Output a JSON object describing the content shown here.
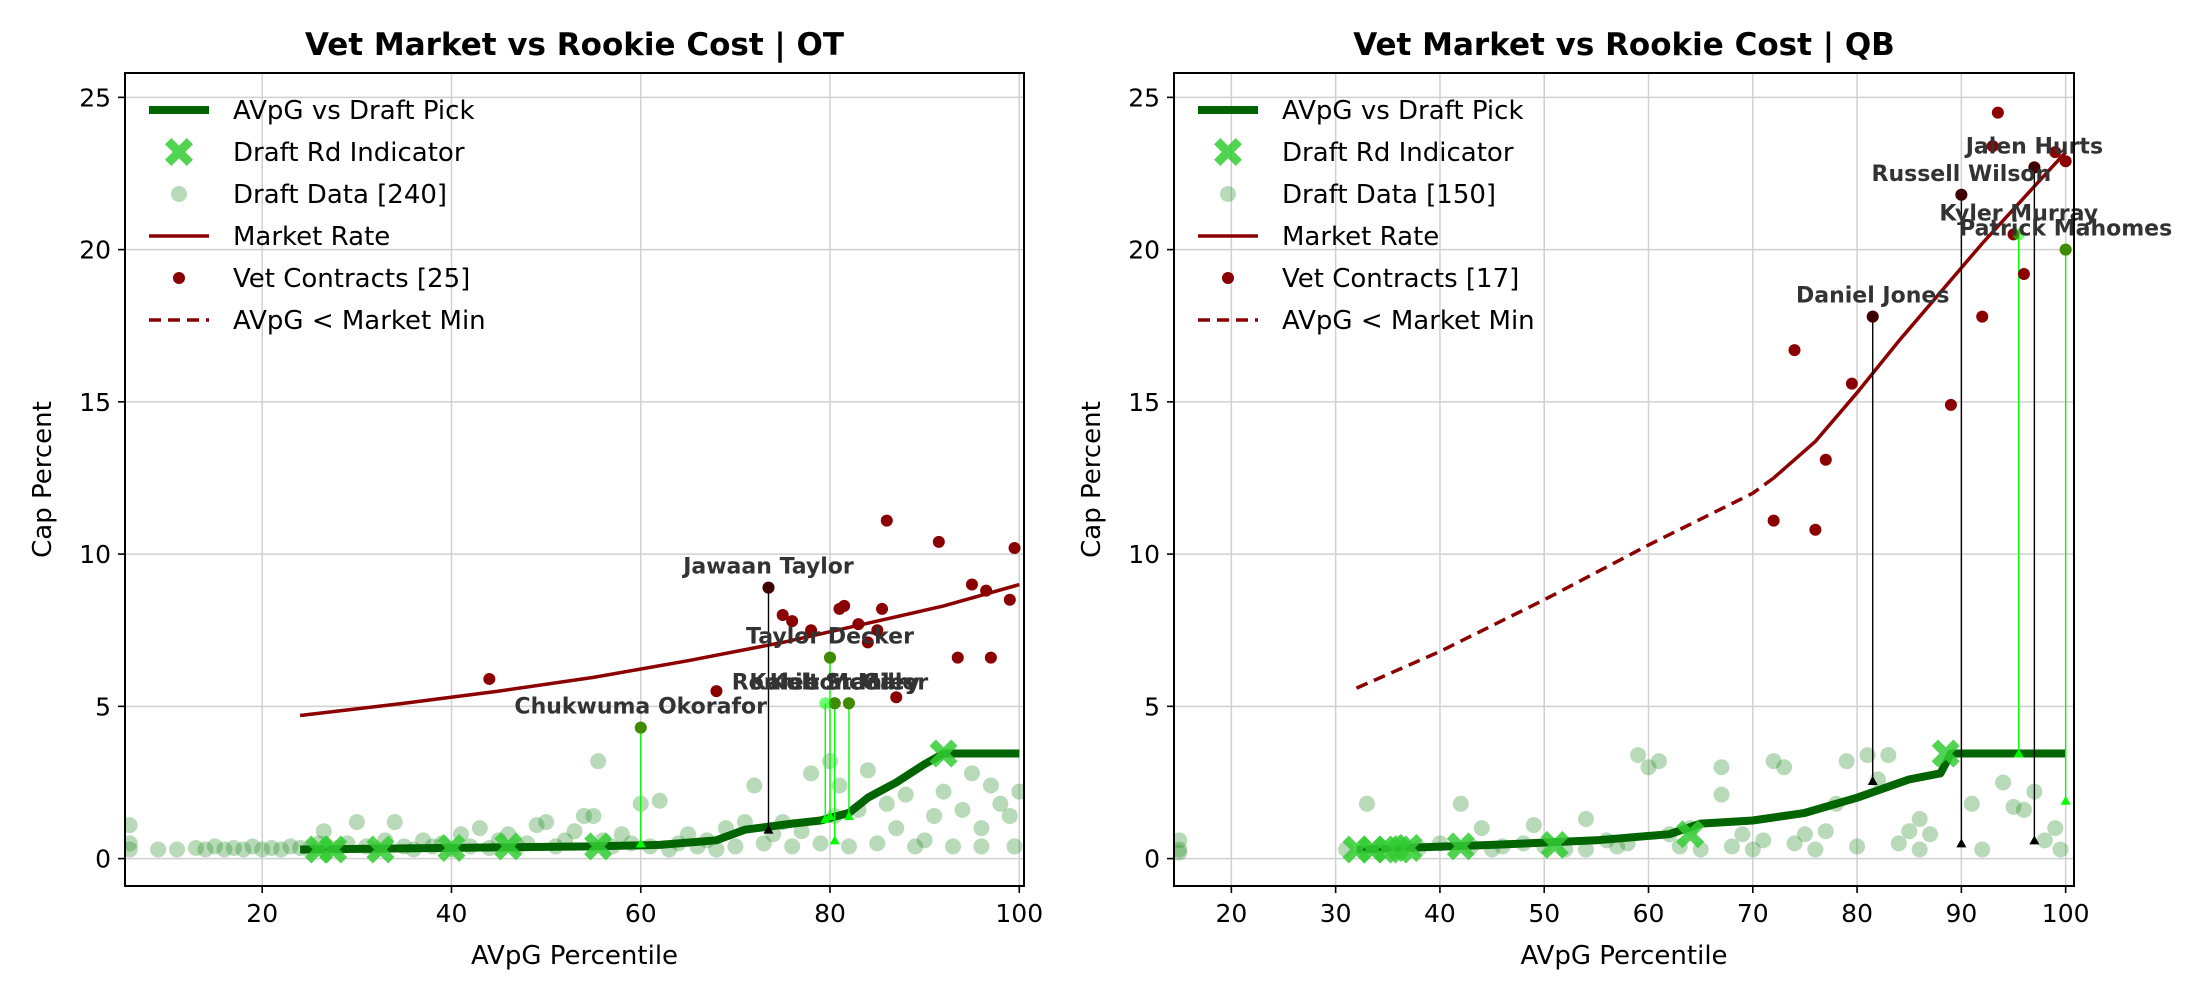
{
  "chart_data": [
    {
      "type": "scatter",
      "title": "Vet Market vs Rookie Cost | OT",
      "xlabel": "AVpG Percentile",
      "ylabel": "Cap Percent",
      "xlim": [
        5.5,
        100.5
      ],
      "ylim": [
        -0.9,
        25.8
      ],
      "xticks": [
        20,
        40,
        60,
        80,
        100
      ],
      "yticks": [
        0,
        5,
        10,
        15,
        20,
        25
      ],
      "grid": true,
      "legend_position": "upper-left",
      "legend": [
        "AVpG vs Draft Pick",
        "Draft Rd Indicator",
        "Draft Data [240]",
        "Market Rate",
        "Vet Contracts [25]",
        "AVpG < Market Min"
      ],
      "colors": {
        "avpg_line": "#006400",
        "draft_marker": "#32cd32",
        "draft_data": "#228b22",
        "market": "#8b0000",
        "highlight": "#00ff00",
        "label": "#333333"
      },
      "avpg_curve": [
        [
          24,
          0.3
        ],
        [
          40,
          0.35
        ],
        [
          55,
          0.4
        ],
        [
          62,
          0.45
        ],
        [
          68,
          0.6
        ],
        [
          71,
          0.95
        ],
        [
          76,
          1.15
        ],
        [
          79,
          1.25
        ],
        [
          82,
          1.5
        ],
        [
          84,
          2.0
        ],
        [
          87,
          2.5
        ],
        [
          90,
          3.1
        ],
        [
          92,
          3.45
        ],
        [
          100,
          3.45
        ]
      ],
      "draft_markers": [
        [
          26,
          0.3
        ],
        [
          27.5,
          0.3
        ],
        [
          32.5,
          0.3
        ],
        [
          40,
          0.35
        ],
        [
          46,
          0.4
        ],
        [
          55.5,
          0.4
        ],
        [
          92,
          3.45
        ]
      ],
      "draft_data": [
        [
          6,
          0.5
        ],
        [
          6,
          1.1
        ],
        [
          6,
          0.3
        ],
        [
          9,
          0.3
        ],
        [
          11,
          0.3
        ],
        [
          13,
          0.35
        ],
        [
          14,
          0.3
        ],
        [
          15,
          0.4
        ],
        [
          16,
          0.3
        ],
        [
          17,
          0.35
        ],
        [
          18,
          0.3
        ],
        [
          19,
          0.4
        ],
        [
          20,
          0.3
        ],
        [
          21,
          0.35
        ],
        [
          22,
          0.3
        ],
        [
          23,
          0.4
        ],
        [
          24,
          0.35
        ],
        [
          25,
          0.3
        ],
        [
          26,
          0.5
        ],
        [
          26.5,
          0.9
        ],
        [
          28,
          0.35
        ],
        [
          29,
          0.5
        ],
        [
          30,
          1.2
        ],
        [
          31,
          0.4
        ],
        [
          32,
          0.3
        ],
        [
          33,
          0.6
        ],
        [
          34,
          1.2
        ],
        [
          35,
          0.4
        ],
        [
          36,
          0.3
        ],
        [
          37,
          0.6
        ],
        [
          38,
          0.4
        ],
        [
          39,
          0.5
        ],
        [
          40,
          0.3
        ],
        [
          41,
          0.8
        ],
        [
          42,
          0.4
        ],
        [
          43,
          1.0
        ],
        [
          44,
          0.35
        ],
        [
          45,
          0.6
        ],
        [
          46,
          0.8
        ],
        [
          47,
          0.4
        ],
        [
          48,
          0.5
        ],
        [
          49,
          1.1
        ],
        [
          50,
          1.2
        ],
        [
          51,
          0.4
        ],
        [
          52,
          0.6
        ],
        [
          53,
          0.9
        ],
        [
          54,
          1.4
        ],
        [
          55,
          1.4
        ],
        [
          55.5,
          3.2
        ],
        [
          56,
          0.6
        ],
        [
          57,
          0.4
        ],
        [
          58,
          0.8
        ],
        [
          59,
          0.5
        ],
        [
          60,
          1.8
        ],
        [
          61,
          0.4
        ],
        [
          62,
          1.9
        ],
        [
          63,
          0.3
        ],
        [
          64,
          0.5
        ],
        [
          65,
          0.8
        ],
        [
          66,
          0.4
        ],
        [
          67,
          0.6
        ],
        [
          68,
          0.3
        ],
        [
          69,
          1.0
        ],
        [
          70,
          0.4
        ],
        [
          71,
          1.2
        ],
        [
          72,
          2.4
        ],
        [
          73,
          0.5
        ],
        [
          74,
          0.8
        ],
        [
          75,
          1.2
        ],
        [
          76,
          0.4
        ],
        [
          77,
          0.9
        ],
        [
          78,
          2.8
        ],
        [
          79,
          0.5
        ],
        [
          80,
          3.2
        ],
        [
          80.5,
          1.4
        ],
        [
          81,
          2.4
        ],
        [
          82,
          0.4
        ],
        [
          83,
          1.6
        ],
        [
          84,
          2.9
        ],
        [
          85,
          0.5
        ],
        [
          86,
          1.8
        ],
        [
          87,
          1.0
        ],
        [
          88,
          2.1
        ],
        [
          89,
          0.4
        ],
        [
          90,
          0.6
        ],
        [
          91,
          1.4
        ],
        [
          92,
          2.2
        ],
        [
          93,
          0.4
        ],
        [
          94,
          1.6
        ],
        [
          95,
          2.8
        ],
        [
          96,
          1.0
        ],
        [
          97,
          2.4
        ],
        [
          98,
          1.8
        ],
        [
          99,
          1.4
        ],
        [
          100,
          2.2
        ],
        [
          99.5,
          0.4
        ],
        [
          96,
          0.4
        ]
      ],
      "market_line": [
        [
          24,
          4.7
        ],
        [
          35,
          5.1
        ],
        [
          45,
          5.5
        ],
        [
          55,
          5.95
        ],
        [
          65,
          6.5
        ],
        [
          75,
          7.1
        ],
        [
          85,
          7.8
        ],
        [
          92,
          8.3
        ],
        [
          100,
          9.0
        ]
      ],
      "market_dashed": [],
      "vet_contracts": [
        [
          44,
          5.9
        ],
        [
          68,
          5.5
        ],
        [
          73.5,
          8.9
        ],
        [
          75,
          8.0
        ],
        [
          76,
          7.8
        ],
        [
          78,
          7.5
        ],
        [
          80,
          6.6
        ],
        [
          80.5,
          5.1
        ],
        [
          81,
          8.2
        ],
        [
          81.5,
          8.3
        ],
        [
          82,
          5.1
        ],
        [
          83,
          7.7
        ],
        [
          84,
          7.1
        ],
        [
          85,
          7.5
        ],
        [
          85.5,
          8.2
        ],
        [
          86,
          11.1
        ],
        [
          87,
          5.3
        ],
        [
          91.5,
          10.4
        ],
        [
          93.5,
          6.6
        ],
        [
          95,
          9.0
        ],
        [
          96.5,
          8.8
        ],
        [
          97,
          6.6
        ],
        [
          99,
          8.5
        ],
        [
          99.5,
          10.2
        ],
        [
          60,
          4.3
        ]
      ],
      "highlights": [
        {
          "name": "Jawaan Taylor",
          "x": 73.5,
          "y": 8.9,
          "base": 0.95,
          "color": "black"
        },
        {
          "name": "Taylor Decker",
          "x": 80,
          "y": 6.6,
          "base": 1.4,
          "color": "green"
        },
        {
          "name": "Chukwuma Okorafor",
          "x": 60,
          "y": 4.3,
          "base": 0.5,
          "color": "green"
        },
        {
          "name": "Ronnie Stanley",
          "x": 79.5,
          "y": 5.1,
          "base": 1.3,
          "color": "green"
        },
        {
          "name": "Kaleb McGary",
          "x": 80.5,
          "y": 5.1,
          "base": 0.6,
          "color": "green"
        },
        {
          "name": "Kolton Miller",
          "x": 82,
          "y": 5.1,
          "base": 1.4,
          "color": "green"
        }
      ]
    },
    {
      "type": "scatter",
      "title": "Vet Market vs Rookie Cost | QB",
      "xlabel": "AVpG Percentile",
      "ylabel": "Cap Percent",
      "xlim": [
        14.5,
        100.8
      ],
      "ylim": [
        -0.9,
        25.8
      ],
      "xticks": [
        20,
        30,
        40,
        50,
        60,
        70,
        80,
        90,
        100
      ],
      "yticks": [
        0,
        5,
        10,
        15,
        20,
        25
      ],
      "grid": true,
      "legend_position": "upper-left",
      "legend": [
        "AVpG vs Draft Pick",
        "Draft Rd Indicator",
        "Draft Data [150]",
        "Market Rate",
        "Vet Contracts [17]",
        "AVpG < Market Min"
      ],
      "colors": {
        "avpg_line": "#006400",
        "draft_marker": "#32cd32",
        "draft_data": "#228b22",
        "market": "#8b0000",
        "highlight": "#00ff00",
        "label": "#333333"
      },
      "avpg_curve": [
        [
          32,
          0.3
        ],
        [
          45,
          0.45
        ],
        [
          55,
          0.6
        ],
        [
          62,
          0.8
        ],
        [
          65,
          1.15
        ],
        [
          70,
          1.25
        ],
        [
          75,
          1.5
        ],
        [
          80,
          2.0
        ],
        [
          85,
          2.6
        ],
        [
          88,
          2.8
        ],
        [
          89,
          3.45
        ],
        [
          100,
          3.45
        ]
      ],
      "draft_markers": [
        [
          32,
          0.3
        ],
        [
          33.5,
          0.3
        ],
        [
          35,
          0.3
        ],
        [
          36,
          0.3
        ],
        [
          37,
          0.35
        ],
        [
          42,
          0.4
        ],
        [
          51,
          0.45
        ],
        [
          64,
          0.8
        ],
        [
          88.5,
          3.45
        ]
      ],
      "draft_data": [
        [
          15,
          0.3
        ],
        [
          15,
          0.6
        ],
        [
          15,
          0.2
        ],
        [
          31,
          0.3
        ],
        [
          33,
          1.8
        ],
        [
          34,
          0.3
        ],
        [
          36,
          0.5
        ],
        [
          38,
          0.35
        ],
        [
          40,
          0.5
        ],
        [
          42,
          1.8
        ],
        [
          43,
          0.4
        ],
        [
          44,
          1.0
        ],
        [
          45,
          0.3
        ],
        [
          46,
          0.4
        ],
        [
          48,
          0.5
        ],
        [
          49,
          1.1
        ],
        [
          50,
          0.4
        ],
        [
          52,
          0.3
        ],
        [
          54,
          1.3
        ],
        [
          54,
          0.3
        ],
        [
          56,
          0.6
        ],
        [
          57,
          0.4
        ],
        [
          58,
          0.5
        ],
        [
          59,
          3.4
        ],
        [
          60,
          3.0
        ],
        [
          61,
          3.2
        ],
        [
          62,
          0.8
        ],
        [
          63,
          0.4
        ],
        [
          64,
          1.0
        ],
        [
          65,
          0.3
        ],
        [
          67,
          3.0
        ],
        [
          67,
          2.1
        ],
        [
          68,
          0.4
        ],
        [
          69,
          0.8
        ],
        [
          70,
          0.3
        ],
        [
          71,
          0.6
        ],
        [
          72,
          3.2
        ],
        [
          73,
          3.0
        ],
        [
          74,
          0.5
        ],
        [
          75,
          0.8
        ],
        [
          76,
          0.3
        ],
        [
          77,
          0.9
        ],
        [
          78,
          1.8
        ],
        [
          79,
          3.2
        ],
        [
          80,
          0.4
        ],
        [
          81,
          3.4
        ],
        [
          82,
          2.6
        ],
        [
          83,
          3.4
        ],
        [
          84,
          0.5
        ],
        [
          85,
          0.9
        ],
        [
          86,
          1.3
        ],
        [
          86,
          0.3
        ],
        [
          87,
          0.8
        ],
        [
          92,
          0.3
        ],
        [
          94,
          2.5
        ],
        [
          95,
          1.7
        ],
        [
          96,
          1.6
        ],
        [
          97,
          2.2
        ],
        [
          98,
          0.6
        ],
        [
          99,
          1.0
        ],
        [
          99.5,
          0.3
        ],
        [
          91,
          1.8
        ]
      ],
      "market_line": [
        [
          72,
          12.5
        ],
        [
          76,
          13.7
        ],
        [
          80,
          15.3
        ],
        [
          84,
          17.0
        ],
        [
          88,
          18.6
        ],
        [
          92,
          20.2
        ],
        [
          96,
          21.7
        ],
        [
          100,
          23.2
        ]
      ],
      "market_dashed": [
        [
          32,
          5.6
        ],
        [
          40,
          6.8
        ],
        [
          50,
          8.5
        ],
        [
          60,
          10.3
        ],
        [
          70,
          12.0
        ],
        [
          72,
          12.5
        ]
      ],
      "vet_contracts": [
        [
          72,
          11.1
        ],
        [
          74,
          16.7
        ],
        [
          76,
          10.8
        ],
        [
          77,
          13.1
        ],
        [
          79.5,
          15.6
        ],
        [
          81.5,
          17.8
        ],
        [
          89,
          14.9
        ],
        [
          90,
          21.8
        ],
        [
          92,
          17.8
        ],
        [
          93,
          23.4
        ],
        [
          93.5,
          24.5
        ],
        [
          95,
          20.5
        ],
        [
          96,
          19.2
        ],
        [
          97,
          22.7
        ],
        [
          99,
          23.2
        ],
        [
          100,
          20.0
        ],
        [
          100,
          22.9
        ]
      ],
      "highlights": [
        {
          "name": "Daniel Jones",
          "x": 81.5,
          "y": 17.8,
          "base": 2.55,
          "color": "black"
        },
        {
          "name": "Russell Wilson",
          "x": 90,
          "y": 21.8,
          "base": 0.5,
          "color": "black"
        },
        {
          "name": "Jalen Hurts",
          "x": 97,
          "y": 22.7,
          "base": 0.6,
          "color": "black"
        },
        {
          "name": "Kyler Murray",
          "x": 95.5,
          "y": 20.5,
          "base": 3.45,
          "color": "green"
        },
        {
          "name": "Patrick Mahomes",
          "x": 100,
          "y": 20.0,
          "base": 1.9,
          "color": "green"
        }
      ]
    }
  ]
}
